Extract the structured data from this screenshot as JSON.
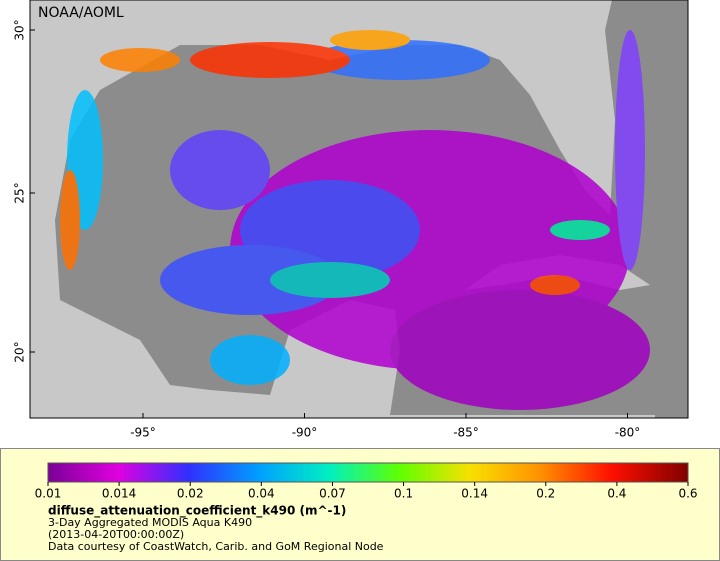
{
  "map": {
    "credit": "NOAA/AOML",
    "lat_labels": [
      "30°",
      "25°",
      "20°"
    ],
    "lon_labels": [
      "-95°",
      "-90°",
      "-85°",
      "-80°"
    ]
  },
  "legend": {
    "ticks": [
      "0.01",
      "0.014",
      "0.02",
      "0.04",
      "0.07",
      "0.1",
      "0.14",
      "0.2",
      "0.4",
      "0.6"
    ],
    "variable": "diffuse_attenuation_coefficient_k490 (m^-1)",
    "product": "3-Day Aggregated MODIS Aqua K490",
    "time": "(2013-04-20T00:00:00Z)",
    "source": "Data courtesy of CoastWatch, Carib. and GoM Regional Node"
  }
}
